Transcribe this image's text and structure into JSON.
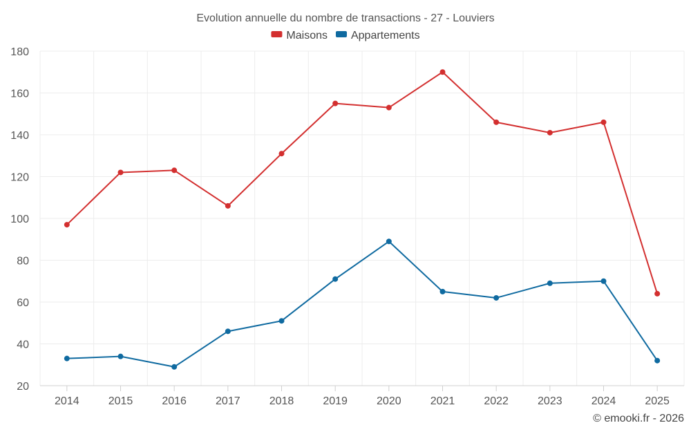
{
  "chart_data": {
    "type": "line",
    "title": "Evolution annuelle du nombre de transactions - 27 - Louviers",
    "categories": [
      "2014",
      "2015",
      "2016",
      "2017",
      "2018",
      "2019",
      "2020",
      "2021",
      "2022",
      "2023",
      "2024",
      "2025"
    ],
    "series": [
      {
        "name": "Maisons",
        "color": "#d32f2f",
        "values": [
          97,
          122,
          123,
          106,
          131,
          155,
          153,
          170,
          146,
          141,
          146,
          64
        ]
      },
      {
        "name": "Appartements",
        "color": "#0f6aa0",
        "values": [
          33,
          34,
          29,
          46,
          51,
          71,
          89,
          65,
          62,
          69,
          70,
          32
        ]
      }
    ],
    "ylim": [
      20,
      180
    ],
    "yticks": [
      20,
      40,
      60,
      80,
      100,
      120,
      140,
      160,
      180
    ],
    "xlabel": "",
    "ylabel": "",
    "grid": true,
    "legend": "top-center"
  },
  "credit": "© emooki.fr - 2026"
}
